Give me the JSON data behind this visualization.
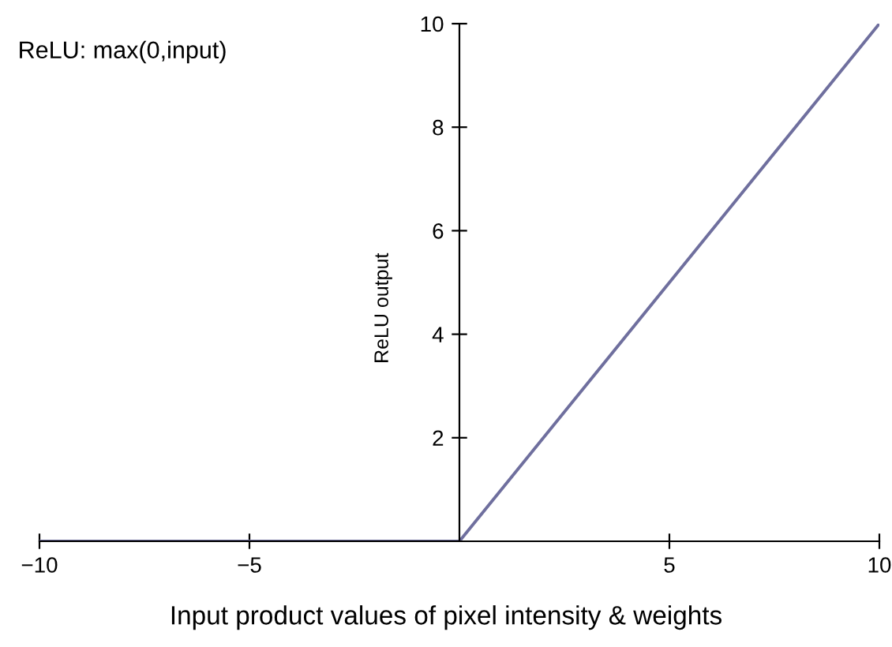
{
  "chart_data": {
    "type": "line",
    "x": [
      -10,
      0,
      10
    ],
    "series": [
      {
        "color": "#6f6f9e",
        "values": [
          0,
          0,
          10
        ]
      }
    ],
    "xlabel": "Input product values of pixel intensity & weights",
    "ylabel": "ReLU output",
    "annotations": [
      "ReLU: max(0,input)"
    ],
    "xlim": [
      -10,
      10
    ],
    "ylim": [
      0,
      10
    ],
    "xticks": [
      {
        "value": -10,
        "label": "−10"
      },
      {
        "value": -5,
        "label": "−5"
      },
      5,
      10
    ],
    "yticks": [
      2,
      4,
      6,
      8,
      10
    ],
    "grid": false,
    "marker": "none",
    "line_style": "solid"
  }
}
